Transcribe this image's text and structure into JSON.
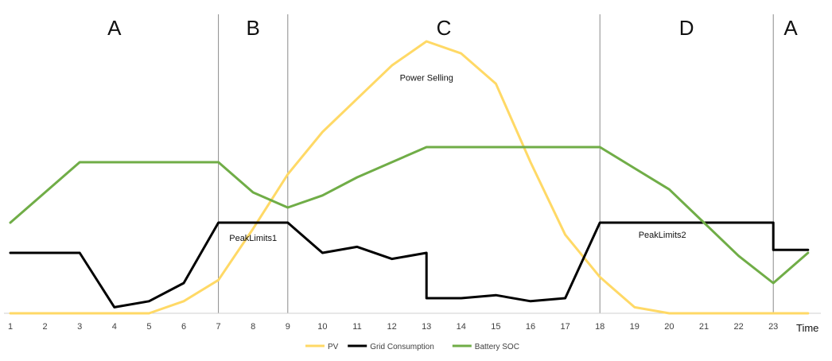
{
  "chart_data": {
    "type": "line",
    "title": "",
    "xlabel": "Time",
    "ylabel": "",
    "x": [
      "1",
      "2",
      "3",
      "4",
      "5",
      "6",
      "7",
      "8",
      "9",
      "10",
      "11",
      "12",
      "13",
      "14",
      "15",
      "16",
      "17",
      "18",
      "19",
      "20",
      "21",
      "22",
      "23"
    ],
    "ylim": [
      0,
      100
    ],
    "grid": false,
    "legend_position": "bottom",
    "series": [
      {
        "name": "PV",
        "color": "#FFD966",
        "points": [
          [
            1,
            0
          ],
          [
            2,
            0
          ],
          [
            3,
            0
          ],
          [
            4,
            0
          ],
          [
            5,
            0
          ],
          [
            6,
            4
          ],
          [
            7,
            11
          ],
          [
            8,
            28
          ],
          [
            9,
            46
          ],
          [
            10,
            60
          ],
          [
            11,
            71
          ],
          [
            12,
            82
          ],
          [
            13,
            90
          ],
          [
            14,
            86
          ],
          [
            15,
            76
          ],
          [
            16,
            50
          ],
          [
            17,
            26
          ],
          [
            18,
            12
          ],
          [
            19,
            2
          ],
          [
            20,
            0
          ],
          [
            21,
            0
          ],
          [
            22,
            0
          ],
          [
            23,
            0
          ],
          [
            24,
            0
          ]
        ]
      },
      {
        "name": "Grid Consumption",
        "color": "#000000",
        "points": [
          [
            1,
            20
          ],
          [
            2,
            20
          ],
          [
            3,
            20
          ],
          [
            4,
            2
          ],
          [
            5,
            4
          ],
          [
            6,
            10
          ],
          [
            7,
            30
          ],
          [
            8,
            30
          ],
          [
            9,
            30
          ],
          [
            10,
            20
          ],
          [
            11,
            22
          ],
          [
            12,
            18
          ],
          [
            13,
            20
          ],
          [
            13,
            5
          ],
          [
            14,
            5
          ],
          [
            15,
            6
          ],
          [
            16,
            4
          ],
          [
            17,
            5
          ],
          [
            18,
            30
          ],
          [
            19,
            30
          ],
          [
            20,
            30
          ],
          [
            21,
            30
          ],
          [
            22,
            30
          ],
          [
            23,
            30
          ],
          [
            23,
            21
          ],
          [
            24,
            21
          ]
        ]
      },
      {
        "name": "Battery SOC",
        "color": "#70AD47",
        "points": [
          [
            1,
            30
          ],
          [
            2,
            40
          ],
          [
            3,
            50
          ],
          [
            4,
            50
          ],
          [
            5,
            50
          ],
          [
            6,
            50
          ],
          [
            7,
            50
          ],
          [
            8,
            40
          ],
          [
            9,
            35
          ],
          [
            10,
            39
          ],
          [
            11,
            45
          ],
          [
            12,
            50
          ],
          [
            13,
            55
          ],
          [
            14,
            55
          ],
          [
            15,
            55
          ],
          [
            16,
            55
          ],
          [
            17,
            55
          ],
          [
            18,
            55
          ],
          [
            19,
            48
          ],
          [
            20,
            41
          ],
          [
            21,
            30
          ],
          [
            22,
            19
          ],
          [
            23,
            10
          ],
          [
            24,
            20
          ]
        ]
      }
    ],
    "regions": [
      {
        "label": "A",
        "x_from": 1,
        "x_to": 7
      },
      {
        "label": "B",
        "x_from": 7,
        "x_to": 9
      },
      {
        "label": "C",
        "x_from": 9,
        "x_to": 18
      },
      {
        "label": "D",
        "x_from": 18,
        "x_to": 23
      },
      {
        "label": "A",
        "x_from": 23,
        "x_to": 24
      }
    ],
    "region_boundaries": [
      7,
      9,
      18,
      23
    ],
    "annotations": [
      {
        "text": "Power Selling",
        "x": 13,
        "y": 77
      },
      {
        "text": "PeakLimits1",
        "x": 8,
        "y": 24
      },
      {
        "text": "PeakLimits2",
        "x": 19.8,
        "y": 25
      }
    ]
  }
}
